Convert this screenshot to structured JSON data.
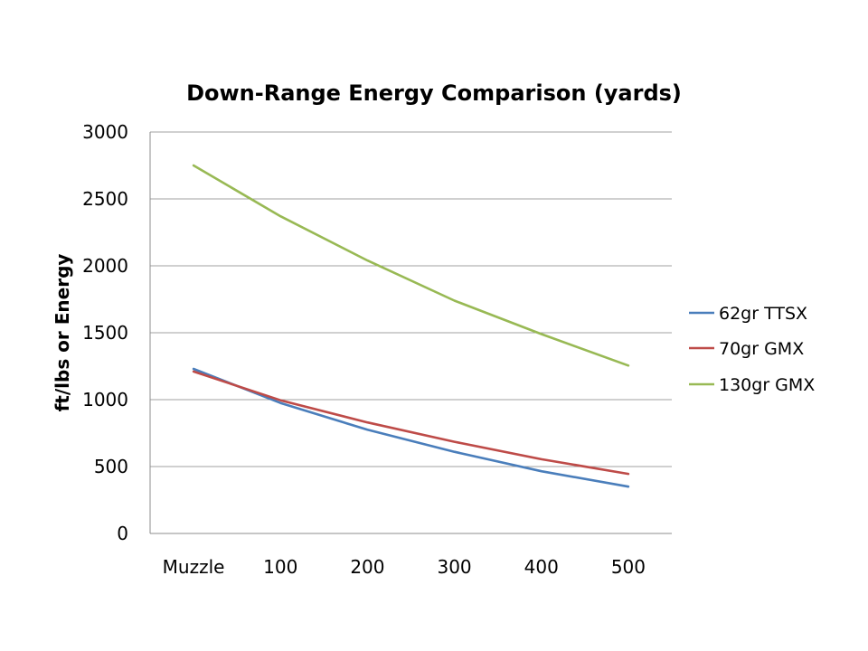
{
  "chart_data": {
    "type": "line",
    "title": "Down-Range Energy Comparison (yards)",
    "xlabel": "",
    "ylabel": "ft/lbs or Energy",
    "categories": [
      "Muzzle",
      "100",
      "200",
      "300",
      "400",
      "500"
    ],
    "ylim": [
      0,
      3000
    ],
    "yticks": [
      0,
      500,
      1000,
      1500,
      2000,
      2500,
      3000
    ],
    "grid": true,
    "legend": "right",
    "series": [
      {
        "name": "62gr TTSX",
        "color": "#4a7ebb",
        "values": [
          1230,
          975,
          775,
          610,
          465,
          350
        ]
      },
      {
        "name": "70gr GMX",
        "color": "#be4b48",
        "values": [
          1210,
          995,
          830,
          685,
          555,
          445
        ]
      },
      {
        "name": "130gr GMX",
        "color": "#98b954",
        "values": [
          2750,
          2370,
          2040,
          1740,
          1490,
          1255
        ]
      }
    ]
  }
}
